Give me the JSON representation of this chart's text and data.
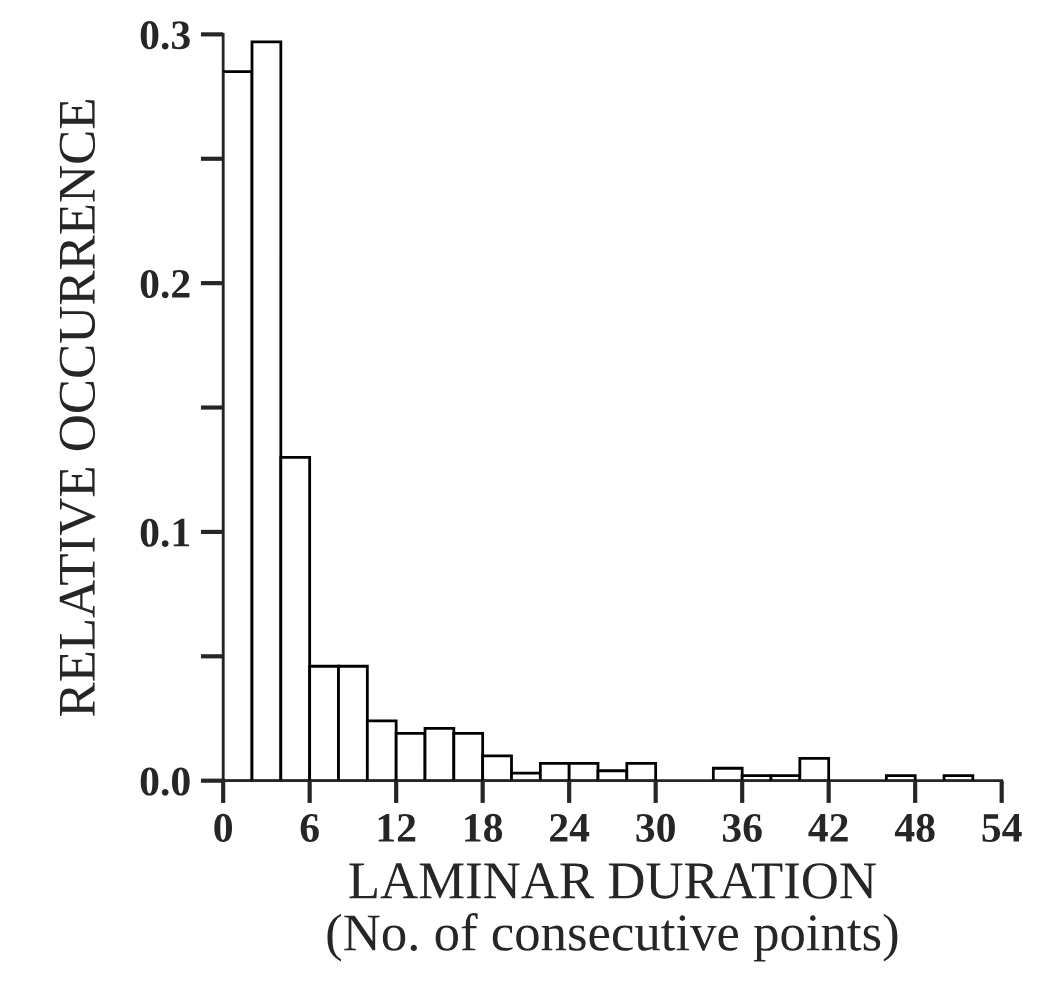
{
  "chart_data": {
    "type": "histogram",
    "xlabel": "LAMINAR DURATION\n(No. of consecutive points)",
    "ylabel": "RELATIVE OCCURRENCE",
    "bins": [
      0,
      2,
      4,
      6,
      8,
      10,
      12,
      14,
      16,
      18,
      20,
      22,
      24,
      26,
      28,
      30,
      32,
      34,
      36,
      38,
      40,
      42,
      44,
      46,
      48,
      50,
      52,
      54
    ],
    "values": [
      0.285,
      0.297,
      0.13,
      0.046,
      0.046,
      0.024,
      0.019,
      0.021,
      0.019,
      0.01,
      0.003,
      0.007,
      0.007,
      0.004,
      0.007,
      0,
      0,
      0.005,
      0.002,
      0.002,
      0.009,
      0,
      0,
      0.002,
      0,
      0.002,
      0
    ],
    "color": "#ffffff",
    "xlim": [
      0,
      54
    ],
    "xticks": [
      0,
      6,
      12,
      18,
      24,
      30,
      36,
      42,
      48,
      54
    ],
    "ylim": [
      0,
      0.3
    ],
    "yticks": [
      {
        "value": 0,
        "label": "0.0"
      },
      {
        "value": 0.05,
        "label": null
      },
      {
        "value": 0.1,
        "label": "0.1"
      },
      {
        "value": 0.15,
        "label": null
      },
      {
        "value": 0.2,
        "label": "0.2"
      },
      {
        "value": 0.25,
        "label": null
      },
      {
        "value": 0.3,
        "label": "0.3"
      }
    ],
    "grid": false,
    "legend": false
  }
}
